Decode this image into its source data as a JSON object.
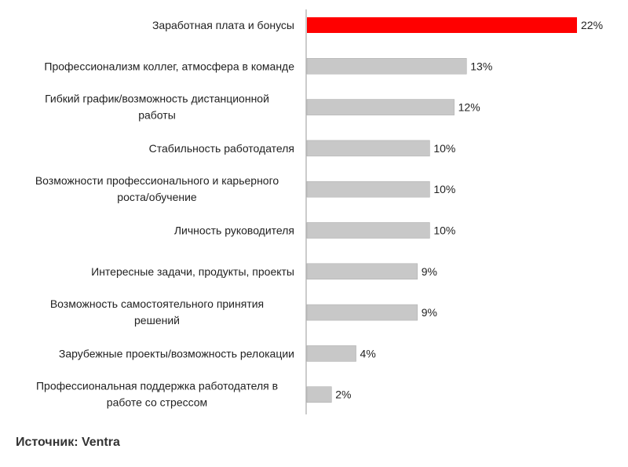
{
  "chart_data": {
    "type": "bar",
    "orientation": "horizontal",
    "categories": [
      "Заработная плата и бонусы",
      "Профессионализм коллег, атмосфера в команде",
      "Гибкий график/возможность дистанционной работы",
      "Стабильность работодателя",
      "Возможности профессионального и карьерного роста/обучение",
      "Личность руководителя",
      "Интересные задачи, продукты, проекты",
      "Возможность самостоятельного принятия решений",
      "Зарубежные проекты/возможность релокации",
      "Профессиональная поддержка работодателя в работе со стрессом"
    ],
    "category_lines": [
      [
        "Заработная плата и бонусы"
      ],
      [
        "Профессионализм коллег, атмосфера в команде"
      ],
      [
        "Гибкий график/возможность дистанционной",
        "работы"
      ],
      [
        "Стабильность работодателя"
      ],
      [
        "Возможности профессионального и карьерного",
        "роста/обучение"
      ],
      [
        "Личность руководителя"
      ],
      [
        "Интересные задачи, продукты, проекты"
      ],
      [
        "Возможность самостоятельного принятия",
        "решений"
      ],
      [
        "Зарубежные проекты/возможность релокации"
      ],
      [
        "Профессиональная поддержка работодателя в",
        "работе со стрессом"
      ]
    ],
    "values": [
      22,
      13,
      12,
      10,
      10,
      10,
      9,
      9,
      4,
      2
    ],
    "value_labels": [
      "22%",
      "13%",
      "12%",
      "10%",
      "10%",
      "10%",
      "9%",
      "9%",
      "4%",
      "2%"
    ],
    "unit": "%",
    "xlim": [
      0,
      22
    ],
    "highlight_index": 0,
    "colors": {
      "highlight": "#ff0000",
      "default": "#c8c8c8",
      "axis": "#999999"
    },
    "grid": false,
    "legend": "none"
  },
  "source_text": "Источник: Ventra"
}
